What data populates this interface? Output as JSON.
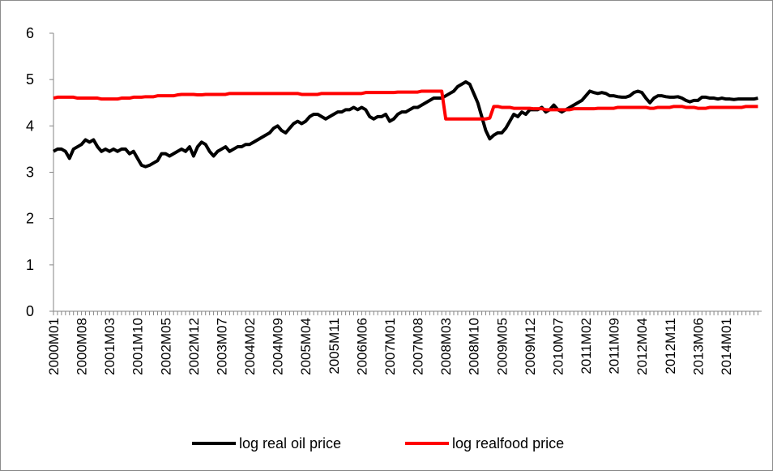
{
  "chart_data": {
    "type": "line",
    "categories": [
      "2000M01",
      null,
      null,
      null,
      null,
      null,
      null,
      "2000M08",
      null,
      null,
      null,
      null,
      null,
      null,
      "2001M03",
      null,
      null,
      null,
      null,
      null,
      null,
      "2001M10",
      null,
      null,
      null,
      null,
      null,
      null,
      "2002M05",
      null,
      null,
      null,
      null,
      null,
      null,
      "2002M12",
      null,
      null,
      null,
      null,
      null,
      null,
      "2003M07",
      null,
      null,
      null,
      null,
      null,
      null,
      "2004M02",
      null,
      null,
      null,
      null,
      null,
      null,
      "2004M09",
      null,
      null,
      null,
      null,
      null,
      null,
      "2005M04",
      null,
      null,
      null,
      null,
      null,
      null,
      "2005M11",
      null,
      null,
      null,
      null,
      null,
      null,
      "2006M06",
      null,
      null,
      null,
      null,
      null,
      null,
      "2007M01",
      null,
      null,
      null,
      null,
      null,
      null,
      "2007M08",
      null,
      null,
      null,
      null,
      null,
      null,
      "2008M03",
      null,
      null,
      null,
      null,
      null,
      null,
      "2008M10",
      null,
      null,
      null,
      null,
      null,
      null,
      "2009M05",
      null,
      null,
      null,
      null,
      null,
      null,
      "2009M12",
      null,
      null,
      null,
      null,
      null,
      null,
      "2010M07",
      null,
      null,
      null,
      null,
      null,
      null,
      "2011M02",
      null,
      null,
      null,
      null,
      null,
      null,
      "2011M09",
      null,
      null,
      null,
      null,
      null,
      null,
      "2012M04",
      null,
      null,
      null,
      null,
      null,
      null,
      "2012M11",
      null,
      null,
      null,
      null,
      null,
      null,
      "2013M06",
      null,
      null,
      null,
      null,
      null,
      null,
      "2014M01",
      null,
      null,
      null,
      null,
      null,
      null,
      null,
      null
    ],
    "series": [
      {
        "name": "log real oil price",
        "color": "#000000",
        "values": [
          3.45,
          3.5,
          3.5,
          3.45,
          3.3,
          3.5,
          3.55,
          3.6,
          3.7,
          3.65,
          3.7,
          3.55,
          3.45,
          3.5,
          3.45,
          3.5,
          3.45,
          3.5,
          3.5,
          3.4,
          3.45,
          3.3,
          3.15,
          3.12,
          3.15,
          3.2,
          3.25,
          3.4,
          3.4,
          3.35,
          3.4,
          3.45,
          3.5,
          3.45,
          3.55,
          3.35,
          3.55,
          3.65,
          3.6,
          3.45,
          3.35,
          3.45,
          3.5,
          3.55,
          3.45,
          3.5,
          3.55,
          3.55,
          3.6,
          3.6,
          3.65,
          3.7,
          3.75,
          3.8,
          3.85,
          3.95,
          4.0,
          3.9,
          3.85,
          3.95,
          4.05,
          4.1,
          4.05,
          4.1,
          4.2,
          4.25,
          4.25,
          4.2,
          4.15,
          4.2,
          4.25,
          4.3,
          4.3,
          4.35,
          4.35,
          4.4,
          4.35,
          4.4,
          4.35,
          4.2,
          4.15,
          4.2,
          4.2,
          4.25,
          4.1,
          4.15,
          4.25,
          4.3,
          4.3,
          4.35,
          4.4,
          4.4,
          4.45,
          4.5,
          4.55,
          4.6,
          4.6,
          4.6,
          4.65,
          4.7,
          4.75,
          4.85,
          4.9,
          4.95,
          4.9,
          4.7,
          4.5,
          4.2,
          3.9,
          3.72,
          3.8,
          3.85,
          3.85,
          3.95,
          4.1,
          4.25,
          4.2,
          4.3,
          4.25,
          4.35,
          4.35,
          4.35,
          4.4,
          4.3,
          4.35,
          4.45,
          4.35,
          4.3,
          4.35,
          4.4,
          4.45,
          4.5,
          4.55,
          4.65,
          4.75,
          4.72,
          4.7,
          4.72,
          4.7,
          4.65,
          4.65,
          4.63,
          4.62,
          4.62,
          4.65,
          4.72,
          4.75,
          4.72,
          4.6,
          4.5,
          4.6,
          4.65,
          4.65,
          4.63,
          4.62,
          4.62,
          4.63,
          4.6,
          4.55,
          4.52,
          4.55,
          4.55,
          4.62,
          4.62,
          4.6,
          4.6,
          4.58,
          4.6,
          4.58,
          4.58,
          4.57,
          4.58,
          4.58,
          4.58,
          4.58,
          4.58,
          4.6
        ]
      },
      {
        "name": "log realfood price",
        "color": "#ff0000",
        "values": [
          4.6,
          4.62,
          4.62,
          4.62,
          4.62,
          4.62,
          4.6,
          4.6,
          4.6,
          4.6,
          4.6,
          4.6,
          4.58,
          4.58,
          4.58,
          4.58,
          4.58,
          4.6,
          4.6,
          4.6,
          4.62,
          4.62,
          4.62,
          4.63,
          4.63,
          4.63,
          4.65,
          4.65,
          4.65,
          4.65,
          4.65,
          4.67,
          4.68,
          4.68,
          4.68,
          4.68,
          4.67,
          4.67,
          4.68,
          4.68,
          4.68,
          4.68,
          4.68,
          4.68,
          4.7,
          4.7,
          4.7,
          4.7,
          4.7,
          4.7,
          4.7,
          4.7,
          4.7,
          4.7,
          4.7,
          4.7,
          4.7,
          4.7,
          4.7,
          4.7,
          4.7,
          4.7,
          4.68,
          4.68,
          4.68,
          4.68,
          4.68,
          4.7,
          4.7,
          4.7,
          4.7,
          4.7,
          4.7,
          4.7,
          4.7,
          4.7,
          4.7,
          4.7,
          4.72,
          4.72,
          4.72,
          4.72,
          4.72,
          4.72,
          4.72,
          4.72,
          4.73,
          4.73,
          4.73,
          4.73,
          4.73,
          4.73,
          4.75,
          4.75,
          4.75,
          4.75,
          4.75,
          4.75,
          4.15,
          4.15,
          4.15,
          4.15,
          4.15,
          4.15,
          4.15,
          4.15,
          4.15,
          4.15,
          4.15,
          4.17,
          4.42,
          4.42,
          4.4,
          4.4,
          4.4,
          4.38,
          4.38,
          4.38,
          4.38,
          4.38,
          4.37,
          4.37,
          4.37,
          4.35,
          4.35,
          4.35,
          4.35,
          4.35,
          4.35,
          4.35,
          4.37,
          4.37,
          4.37,
          4.37,
          4.37,
          4.37,
          4.38,
          4.38,
          4.38,
          4.38,
          4.38,
          4.4,
          4.4,
          4.4,
          4.4,
          4.4,
          4.4,
          4.4,
          4.4,
          4.38,
          4.38,
          4.4,
          4.4,
          4.4,
          4.4,
          4.42,
          4.42,
          4.42,
          4.4,
          4.4,
          4.4,
          4.38,
          4.38,
          4.38,
          4.4,
          4.4,
          4.4,
          4.4,
          4.4,
          4.4,
          4.4,
          4.4,
          4.4,
          4.42,
          4.42,
          4.42,
          4.42
        ]
      }
    ],
    "ylim": [
      0,
      6
    ],
    "yticks": [
      0,
      1,
      2,
      3,
      4,
      5,
      6
    ],
    "grid": false,
    "legend": "bottom"
  }
}
